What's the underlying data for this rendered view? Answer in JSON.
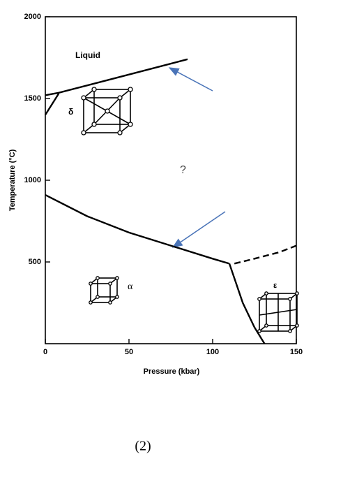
{
  "chart_data": {
    "type": "line",
    "xlabel": "Pressure (kbar)",
    "ylabel": "Temperature (°C)",
    "xlim": [
      0,
      150
    ],
    "ylim": [
      0,
      2000
    ],
    "xticks": [
      0,
      50,
      100,
      150
    ],
    "yticks": [
      500,
      1000,
      1500,
      2000
    ],
    "series": [
      {
        "color": "#000000",
        "x": [
          0,
          8,
          40,
          85
        ],
        "values": [
          1520,
          1535,
          1620,
          1740
        ]
      },
      {
        "color": "#000000",
        "x": [
          0,
          8
        ],
        "values": [
          1400,
          1530
        ]
      },
      {
        "color": "#000000",
        "x": [
          0,
          25,
          50,
          75,
          100,
          110
        ],
        "values": [
          910,
          780,
          680,
          600,
          520,
          490
        ]
      },
      {
        "color": "#000000",
        "x": [
          110,
          113,
          118,
          125,
          131
        ],
        "values": [
          490,
          400,
          250,
          100,
          0
        ]
      },
      {
        "color": "#000000",
        "dashed": true,
        "x": [
          113,
          125,
          140,
          150
        ],
        "values": [
          490,
          520,
          560,
          600
        ]
      }
    ],
    "annotations": [
      "Liquid",
      "δ",
      "α",
      "ε",
      "?"
    ],
    "caption": "(2)"
  }
}
